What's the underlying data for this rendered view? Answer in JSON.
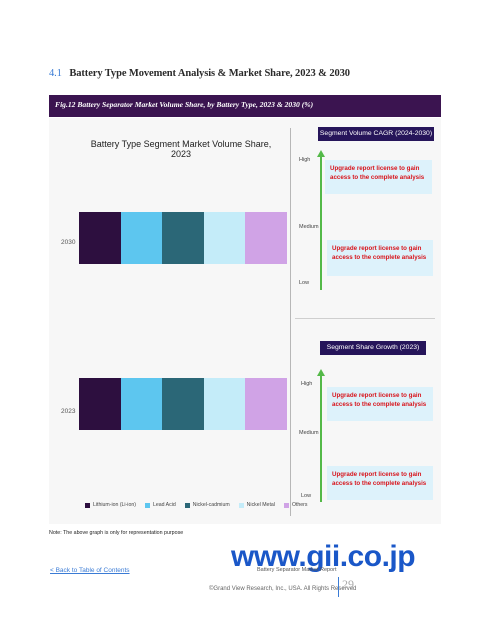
{
  "section": {
    "number": "4.1",
    "title": "Battery Type Movement Analysis & Market Share, 2023 & 2030"
  },
  "figure": {
    "caption": "Fig.12 Battery Separator Market Volume Share, by Battery Type, 2023 & 2030 (%)"
  },
  "chart_data": {
    "type": "bar",
    "orientation": "horizontal-stacked",
    "title": "Battery Type Segment Market Volume Share, 2023",
    "categories": [
      "2030",
      "2023"
    ],
    "series": [
      {
        "name": "Lithium-ion (Li-ion)",
        "color": "#2d0f3f",
        "values": [
          20,
          20
        ]
      },
      {
        "name": "Lead Acid",
        "color": "#5dc6ef",
        "values": [
          20,
          20
        ]
      },
      {
        "name": "Nickel-cadmium",
        "color": "#2b6777",
        "values": [
          20,
          20
        ]
      },
      {
        "name": "Nickel Metal",
        "color": "#c4ecf9",
        "values": [
          20,
          20
        ]
      },
      {
        "name": "Others",
        "color": "#d0a3e6",
        "values": [
          20,
          20
        ]
      }
    ],
    "xlim": [
      0,
      100
    ],
    "grid": false,
    "legend_position": "bottom"
  },
  "legend_labels": [
    "Lithium-ion (Li-ion)",
    "Lead Acid",
    "Nickel-cadmium",
    "Nickel Metal",
    "Others"
  ],
  "cagr_panel": {
    "title": "Segment Volume CAGR (2024-2030)",
    "levels": {
      "high": "High",
      "medium": "Medium",
      "low": "Low"
    },
    "messages": [
      "Upgrade report license to gain access to the complete analysis",
      "Upgrade report license to gain access to the complete analysis"
    ]
  },
  "share_panel": {
    "title": "Segment Share Growth (2023)",
    "levels": {
      "high": "High",
      "medium": "Medium",
      "low": "Low"
    },
    "messages": [
      "Upgrade report license to gain access to the complete analysis",
      "Upgrade report license to gain access to the complete analysis"
    ]
  },
  "note": "Note: The above graph is only for representation purpose",
  "footer": {
    "back_link": "< Back to Table of Contents",
    "report_title": "Battery Separator Market Report",
    "copyright": "©Grand View Research, Inc., USA. All Rights Reserved",
    "page_number": "29"
  },
  "watermark": "www.gii.co.jp",
  "colors": {
    "figure_bar": "#3b1450",
    "panel_header": "#26155a",
    "arrow": "#54b948",
    "upgrade_text": "#d8141b",
    "upgrade_bg": "#ddf2fb",
    "accent": "#3a7bd5"
  }
}
